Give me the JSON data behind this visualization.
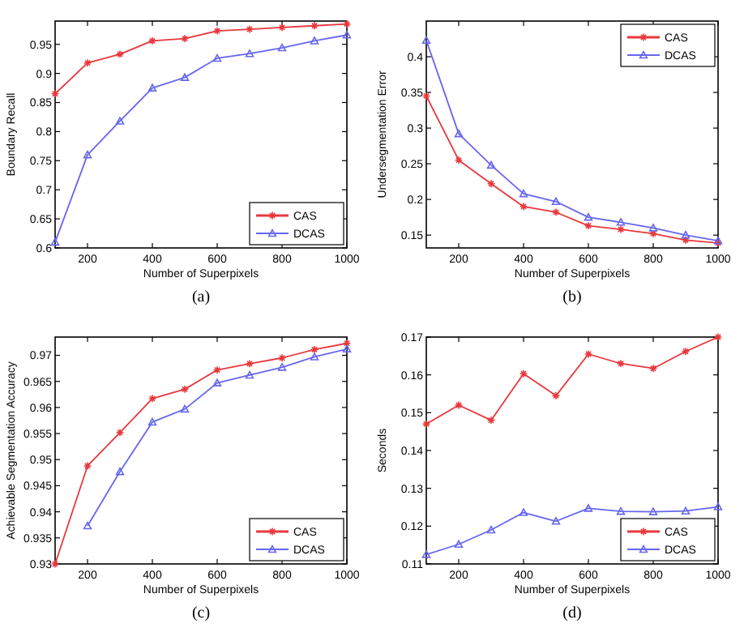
{
  "chart_data": [
    {
      "type": "line",
      "xlabel": "Number of Superpixels",
      "ylabel": "Boundary Recall",
      "annotations": [
        "(a)"
      ],
      "x": [
        100,
        200,
        300,
        400,
        500,
        600,
        700,
        800,
        900,
        1000
      ],
      "xlim": [
        100,
        1000
      ],
      "xticks": [
        200,
        400,
        600,
        800,
        1000
      ],
      "ylim": [
        0.6,
        0.99
      ],
      "yticks": [
        0.6,
        0.65,
        0.7,
        0.75,
        0.8,
        0.85,
        0.9,
        0.95
      ],
      "legend": "bottom right",
      "grid": false,
      "series": [
        {
          "name": "CAS",
          "color": "#e8383d",
          "marker": "cross",
          "values": [
            0.865,
            0.918,
            0.933,
            0.956,
            0.96,
            0.973,
            0.976,
            0.979,
            0.982,
            0.985
          ]
        },
        {
          "name": "DCAS",
          "color": "#6666ee",
          "marker": "triangle",
          "values": [
            0.61,
            0.76,
            0.818,
            0.875,
            0.893,
            0.926,
            0.934,
            0.944,
            0.956,
            0.966
          ]
        }
      ]
    },
    {
      "type": "line",
      "xlabel": "Number of Superpixels",
      "ylabel": "Undersegmentation Error",
      "annotations": [
        "(b)"
      ],
      "x": [
        100,
        200,
        300,
        400,
        500,
        600,
        700,
        800,
        900,
        1000
      ],
      "xlim": [
        100,
        1000
      ],
      "xticks": [
        200,
        400,
        600,
        800,
        1000
      ],
      "ylim": [
        0.132,
        0.45
      ],
      "yticks": [
        0.15,
        0.2,
        0.25,
        0.3,
        0.35,
        0.4
      ],
      "legend": "top right",
      "grid": false,
      "series": [
        {
          "name": "CAS",
          "color": "#e8383d",
          "marker": "cross",
          "values": [
            0.345,
            0.255,
            0.222,
            0.19,
            0.182,
            0.163,
            0.158,
            0.152,
            0.143,
            0.139
          ]
        },
        {
          "name": "DCAS",
          "color": "#6666ee",
          "marker": "triangle",
          "values": [
            0.423,
            0.292,
            0.248,
            0.208,
            0.197,
            0.175,
            0.168,
            0.16,
            0.15,
            0.142
          ]
        }
      ]
    },
    {
      "type": "line",
      "xlabel": "Number of Superpixels",
      "ylabel": "Achievable Segmentation Accuracy",
      "annotations": [
        "(c)"
      ],
      "x": [
        100,
        200,
        300,
        400,
        500,
        600,
        700,
        800,
        900,
        1000
      ],
      "xlim": [
        100,
        1000
      ],
      "xticks": [
        200,
        400,
        600,
        800,
        1000
      ],
      "ylim": [
        0.93,
        0.9735
      ],
      "yticks": [
        0.93,
        0.935,
        0.94,
        0.945,
        0.95,
        0.955,
        0.96,
        0.965,
        0.97
      ],
      "legend": "bottom right",
      "grid": false,
      "series": [
        {
          "name": "CAS",
          "color": "#e8383d",
          "marker": "cross",
          "values": [
            0.93,
            0.9488,
            0.9552,
            0.9617,
            0.9635,
            0.9672,
            0.9684,
            0.9695,
            0.9711,
            0.9723
          ]
        },
        {
          "name": "DCAS",
          "color": "#6666ee",
          "marker": "triangle",
          "values": [
            null,
            0.9373,
            0.9477,
            0.9572,
            0.9597,
            0.9647,
            0.9662,
            0.9677,
            0.9697,
            0.9712
          ]
        }
      ]
    },
    {
      "type": "line",
      "xlabel": "Number of Superpixels",
      "ylabel": "Seconds",
      "annotations": [
        "(d)"
      ],
      "x": [
        100,
        200,
        300,
        400,
        500,
        600,
        700,
        800,
        900,
        1000
      ],
      "xlim": [
        100,
        1000
      ],
      "xticks": [
        200,
        400,
        600,
        800,
        1000
      ],
      "ylim": [
        0.11,
        0.17
      ],
      "yticks": [
        0.11,
        0.12,
        0.13,
        0.14,
        0.15,
        0.16,
        0.17
      ],
      "legend": "bottom right",
      "grid": false,
      "series": [
        {
          "name": "CAS",
          "color": "#e8383d",
          "marker": "cross",
          "values": [
            0.147,
            0.152,
            0.148,
            0.1603,
            0.1545,
            0.1655,
            0.163,
            0.1617,
            0.1662,
            0.17
          ]
        },
        {
          "name": "DCAS",
          "color": "#6666ee",
          "marker": "triangle",
          "values": [
            0.1125,
            0.1152,
            0.119,
            0.1236,
            0.1213,
            0.1247,
            0.1239,
            0.1238,
            0.124,
            0.1251
          ]
        }
      ]
    }
  ]
}
